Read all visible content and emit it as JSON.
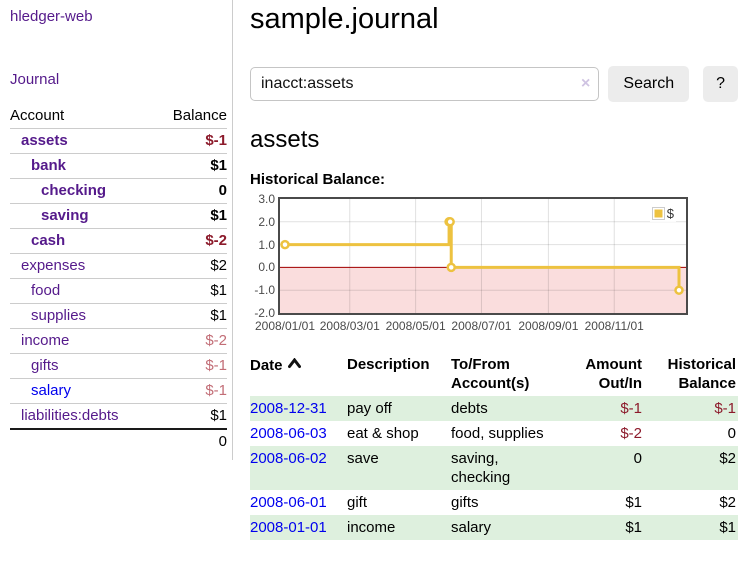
{
  "app": {
    "brand": "hledger-web",
    "nav_journal": "Journal"
  },
  "sidebar": {
    "header": {
      "account": "Account",
      "balance": "Balance"
    },
    "accounts": [
      {
        "name": "assets",
        "balance": "$-1"
      },
      {
        "name": "bank",
        "balance": "$1"
      },
      {
        "name": "checking",
        "balance": "0"
      },
      {
        "name": "saving",
        "balance": "$1"
      },
      {
        "name": "cash",
        "balance": "$-2"
      },
      {
        "name": "expenses",
        "balance": "$2"
      },
      {
        "name": "food",
        "balance": "$1"
      },
      {
        "name": "supplies",
        "balance": "$1"
      },
      {
        "name": "income",
        "balance": "$-2"
      },
      {
        "name": "gifts",
        "balance": "$-1"
      },
      {
        "name": "salary",
        "balance": "$-1"
      },
      {
        "name": "liabilities:debts",
        "balance": "$1"
      }
    ],
    "total": "0"
  },
  "header": {
    "title": "sample.journal"
  },
  "search": {
    "value": "inacct:assets",
    "clear_label": "×",
    "button_label": "Search",
    "help_label": "?"
  },
  "account_page": {
    "title": "assets",
    "chart_label": "Historical Balance:"
  },
  "chart_data": {
    "type": "line",
    "title": "Historical Balance",
    "step": "left",
    "series": [
      {
        "name": "$",
        "color": "#edc240",
        "points": [
          [
            "2008-01-01",
            1
          ],
          [
            "2008-06-01",
            2
          ],
          [
            "2008-06-02",
            2
          ],
          [
            "2008-06-03",
            0
          ],
          [
            "2008-12-31",
            -1
          ]
        ]
      }
    ],
    "xrange": [
      "2008-01-01",
      "2008-12-31"
    ],
    "ylim": [
      -2,
      3
    ],
    "yticks": [
      {
        "v": 3,
        "label": "3.0"
      },
      {
        "v": 2,
        "label": "2.0"
      },
      {
        "v": 1,
        "label": "1.0"
      },
      {
        "v": 0,
        "label": "0.0"
      },
      {
        "v": -1,
        "label": "-1.0"
      },
      {
        "v": -2,
        "label": "-2.0"
      }
    ],
    "xticks": [
      {
        "date": "2008-01-01",
        "label": "2008/01/01"
      },
      {
        "date": "2008-03-01",
        "label": "2008/03/01"
      },
      {
        "date": "2008-05-01",
        "label": "2008/05/01"
      },
      {
        "date": "2008-07-01",
        "label": "2008/07/01"
      },
      {
        "date": "2008-09-01",
        "label": "2008/09/01"
      },
      {
        "date": "2008-11-01",
        "label": "2008/11/01"
      }
    ],
    "negative_fill": "#fadddd",
    "zero_line_color": "#a40000",
    "grid": true,
    "legend": {
      "label": "$",
      "position": "top-right"
    }
  },
  "register": {
    "columns": {
      "date": "Date",
      "description": "Description",
      "accounts": "To/From Account(s)",
      "amount": "Amount Out/In",
      "balance": "Historical Balance"
    },
    "rows": [
      {
        "date": "2008-12-31",
        "description": "pay off",
        "accounts": "debts",
        "amount": "$-1",
        "balance": "$-1"
      },
      {
        "date": "2008-06-03",
        "description": "eat & shop",
        "accounts": "food, supplies",
        "amount": "$-2",
        "balance": "0"
      },
      {
        "date": "2008-06-02",
        "description": "save",
        "accounts": "saving, checking",
        "amount": "0",
        "balance": "$2"
      },
      {
        "date": "2008-06-01",
        "description": "gift",
        "accounts": "gifts",
        "amount": "$1",
        "balance": "$2"
      },
      {
        "date": "2008-01-01",
        "description": "income",
        "accounts": "salary",
        "amount": "$1",
        "balance": "$1"
      }
    ]
  }
}
